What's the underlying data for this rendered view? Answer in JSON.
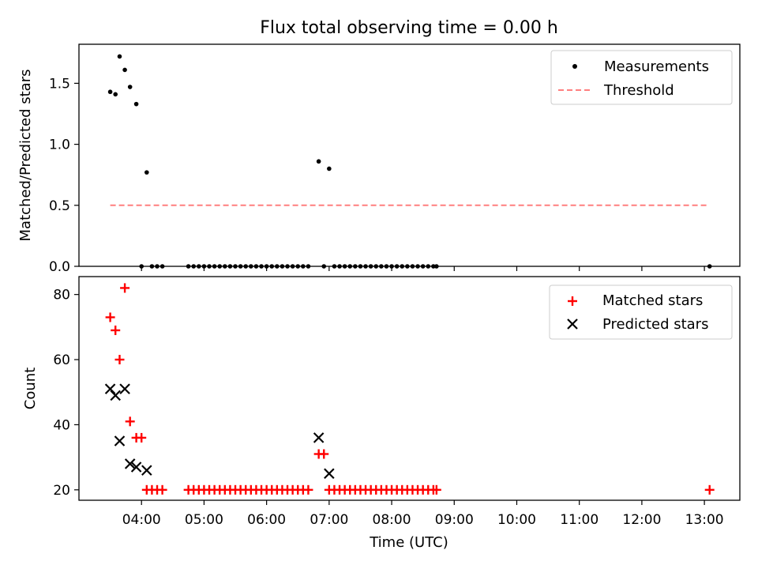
{
  "title": "Flux total observing time = 0.00 h",
  "chart_data": [
    {
      "type": "scatter",
      "panel": "top",
      "xlabel": "",
      "ylabel": "Matched/Predicted stars",
      "xlim": [
        "03:00",
        "13:34"
      ],
      "ylim": [
        0,
        1.82
      ],
      "yticks": [
        "0.0",
        "0.5",
        "1.0",
        "1.5"
      ],
      "legend_position": "upper-right",
      "series": [
        {
          "name": "Measurements",
          "kind": "points",
          "color": "#000000",
          "points": [
            [
              "03:30",
              1.43
            ],
            [
              "03:35",
              1.41
            ],
            [
              "03:39",
              1.72
            ],
            [
              "03:44",
              1.61
            ],
            [
              "03:49",
              1.47
            ],
            [
              "03:55",
              1.33
            ],
            [
              "04:05",
              0.77
            ],
            [
              "04:00",
              0.0
            ],
            [
              "04:10",
              0.0
            ],
            [
              "04:15",
              0.0
            ],
            [
              "04:20",
              0.0
            ],
            [
              "04:45",
              0.0
            ],
            [
              "04:50",
              0.0
            ],
            [
              "04:55",
              0.0
            ],
            [
              "05:00",
              0.0
            ],
            [
              "05:05",
              0.0
            ],
            [
              "05:10",
              0.0
            ],
            [
              "05:15",
              0.0
            ],
            [
              "05:20",
              0.0
            ],
            [
              "05:25",
              0.0
            ],
            [
              "05:30",
              0.0
            ],
            [
              "05:35",
              0.0
            ],
            [
              "05:40",
              0.0
            ],
            [
              "05:45",
              0.0
            ],
            [
              "05:50",
              0.0
            ],
            [
              "05:55",
              0.0
            ],
            [
              "06:00",
              0.0
            ],
            [
              "06:05",
              0.0
            ],
            [
              "06:10",
              0.0
            ],
            [
              "06:15",
              0.0
            ],
            [
              "06:20",
              0.0
            ],
            [
              "06:25",
              0.0
            ],
            [
              "06:30",
              0.0
            ],
            [
              "06:35",
              0.0
            ],
            [
              "06:40",
              0.0
            ],
            [
              "06:50",
              0.86
            ],
            [
              "06:55",
              0.0
            ],
            [
              "07:00",
              0.8
            ],
            [
              "07:05",
              0.0
            ],
            [
              "07:10",
              0.0
            ],
            [
              "07:15",
              0.0
            ],
            [
              "07:20",
              0.0
            ],
            [
              "07:25",
              0.0
            ],
            [
              "07:30",
              0.0
            ],
            [
              "07:35",
              0.0
            ],
            [
              "07:40",
              0.0
            ],
            [
              "07:45",
              0.0
            ],
            [
              "07:50",
              0.0
            ],
            [
              "07:55",
              0.0
            ],
            [
              "08:00",
              0.0
            ],
            [
              "08:05",
              0.0
            ],
            [
              "08:10",
              0.0
            ],
            [
              "08:15",
              0.0
            ],
            [
              "08:20",
              0.0
            ],
            [
              "08:25",
              0.0
            ],
            [
              "08:30",
              0.0
            ],
            [
              "08:35",
              0.0
            ],
            [
              "08:40",
              0.0
            ],
            [
              "08:43",
              0.0
            ],
            [
              "13:05",
              0.0
            ]
          ]
        },
        {
          "name": "Threshold",
          "kind": "dashed-line",
          "color": "#ff7f7f",
          "points": [
            [
              "03:30",
              0.5
            ],
            [
              "13:04",
              0.5
            ]
          ]
        }
      ]
    },
    {
      "type": "scatter",
      "panel": "bottom",
      "xlabel": "Time (UTC)",
      "ylabel": "Count",
      "xlim": [
        "03:00",
        "13:34"
      ],
      "ylim": [
        16.8,
        85.5
      ],
      "yticks": [
        "20",
        "40",
        "60",
        "80"
      ],
      "xticks": [
        "04:00",
        "05:00",
        "06:00",
        "07:00",
        "08:00",
        "09:00",
        "10:00",
        "11:00",
        "12:00",
        "13:00"
      ],
      "legend_position": "upper-right",
      "series": [
        {
          "name": "Matched stars",
          "kind": "plus",
          "color": "#ff0000",
          "points": [
            [
              "03:30",
              73
            ],
            [
              "03:35",
              69
            ],
            [
              "03:39",
              60
            ],
            [
              "03:44",
              82
            ],
            [
              "03:49",
              41
            ],
            [
              "03:55",
              36
            ],
            [
              "04:00",
              36
            ],
            [
              "04:05",
              20
            ],
            [
              "04:10",
              20
            ],
            [
              "04:15",
              20
            ],
            [
              "04:20",
              20
            ],
            [
              "04:45",
              20
            ],
            [
              "04:50",
              20
            ],
            [
              "04:55",
              20
            ],
            [
              "05:00",
              20
            ],
            [
              "05:05",
              20
            ],
            [
              "05:10",
              20
            ],
            [
              "05:15",
              20
            ],
            [
              "05:20",
              20
            ],
            [
              "05:25",
              20
            ],
            [
              "05:30",
              20
            ],
            [
              "05:35",
              20
            ],
            [
              "05:40",
              20
            ],
            [
              "05:45",
              20
            ],
            [
              "05:50",
              20
            ],
            [
              "05:55",
              20
            ],
            [
              "06:00",
              20
            ],
            [
              "06:05",
              20
            ],
            [
              "06:10",
              20
            ],
            [
              "06:15",
              20
            ],
            [
              "06:20",
              20
            ],
            [
              "06:25",
              20
            ],
            [
              "06:30",
              20
            ],
            [
              "06:35",
              20
            ],
            [
              "06:40",
              20
            ],
            [
              "06:50",
              31
            ],
            [
              "06:55",
              31
            ],
            [
              "07:00",
              20
            ],
            [
              "07:05",
              20
            ],
            [
              "07:10",
              20
            ],
            [
              "07:15",
              20
            ],
            [
              "07:20",
              20
            ],
            [
              "07:25",
              20
            ],
            [
              "07:30",
              20
            ],
            [
              "07:35",
              20
            ],
            [
              "07:40",
              20
            ],
            [
              "07:45",
              20
            ],
            [
              "07:50",
              20
            ],
            [
              "07:55",
              20
            ],
            [
              "08:00",
              20
            ],
            [
              "08:05",
              20
            ],
            [
              "08:10",
              20
            ],
            [
              "08:15",
              20
            ],
            [
              "08:20",
              20
            ],
            [
              "08:25",
              20
            ],
            [
              "08:30",
              20
            ],
            [
              "08:35",
              20
            ],
            [
              "08:40",
              20
            ],
            [
              "08:43",
              20
            ],
            [
              "13:05",
              20
            ]
          ]
        },
        {
          "name": "Predicted stars",
          "kind": "cross",
          "color": "#000000",
          "points": [
            [
              "03:30",
              51
            ],
            [
              "03:35",
              49
            ],
            [
              "03:39",
              35
            ],
            [
              "03:44",
              51
            ],
            [
              "03:49",
              28
            ],
            [
              "03:55",
              27
            ],
            [
              "04:05",
              26
            ],
            [
              "06:50",
              36
            ],
            [
              "07:00",
              25
            ]
          ]
        }
      ]
    }
  ]
}
